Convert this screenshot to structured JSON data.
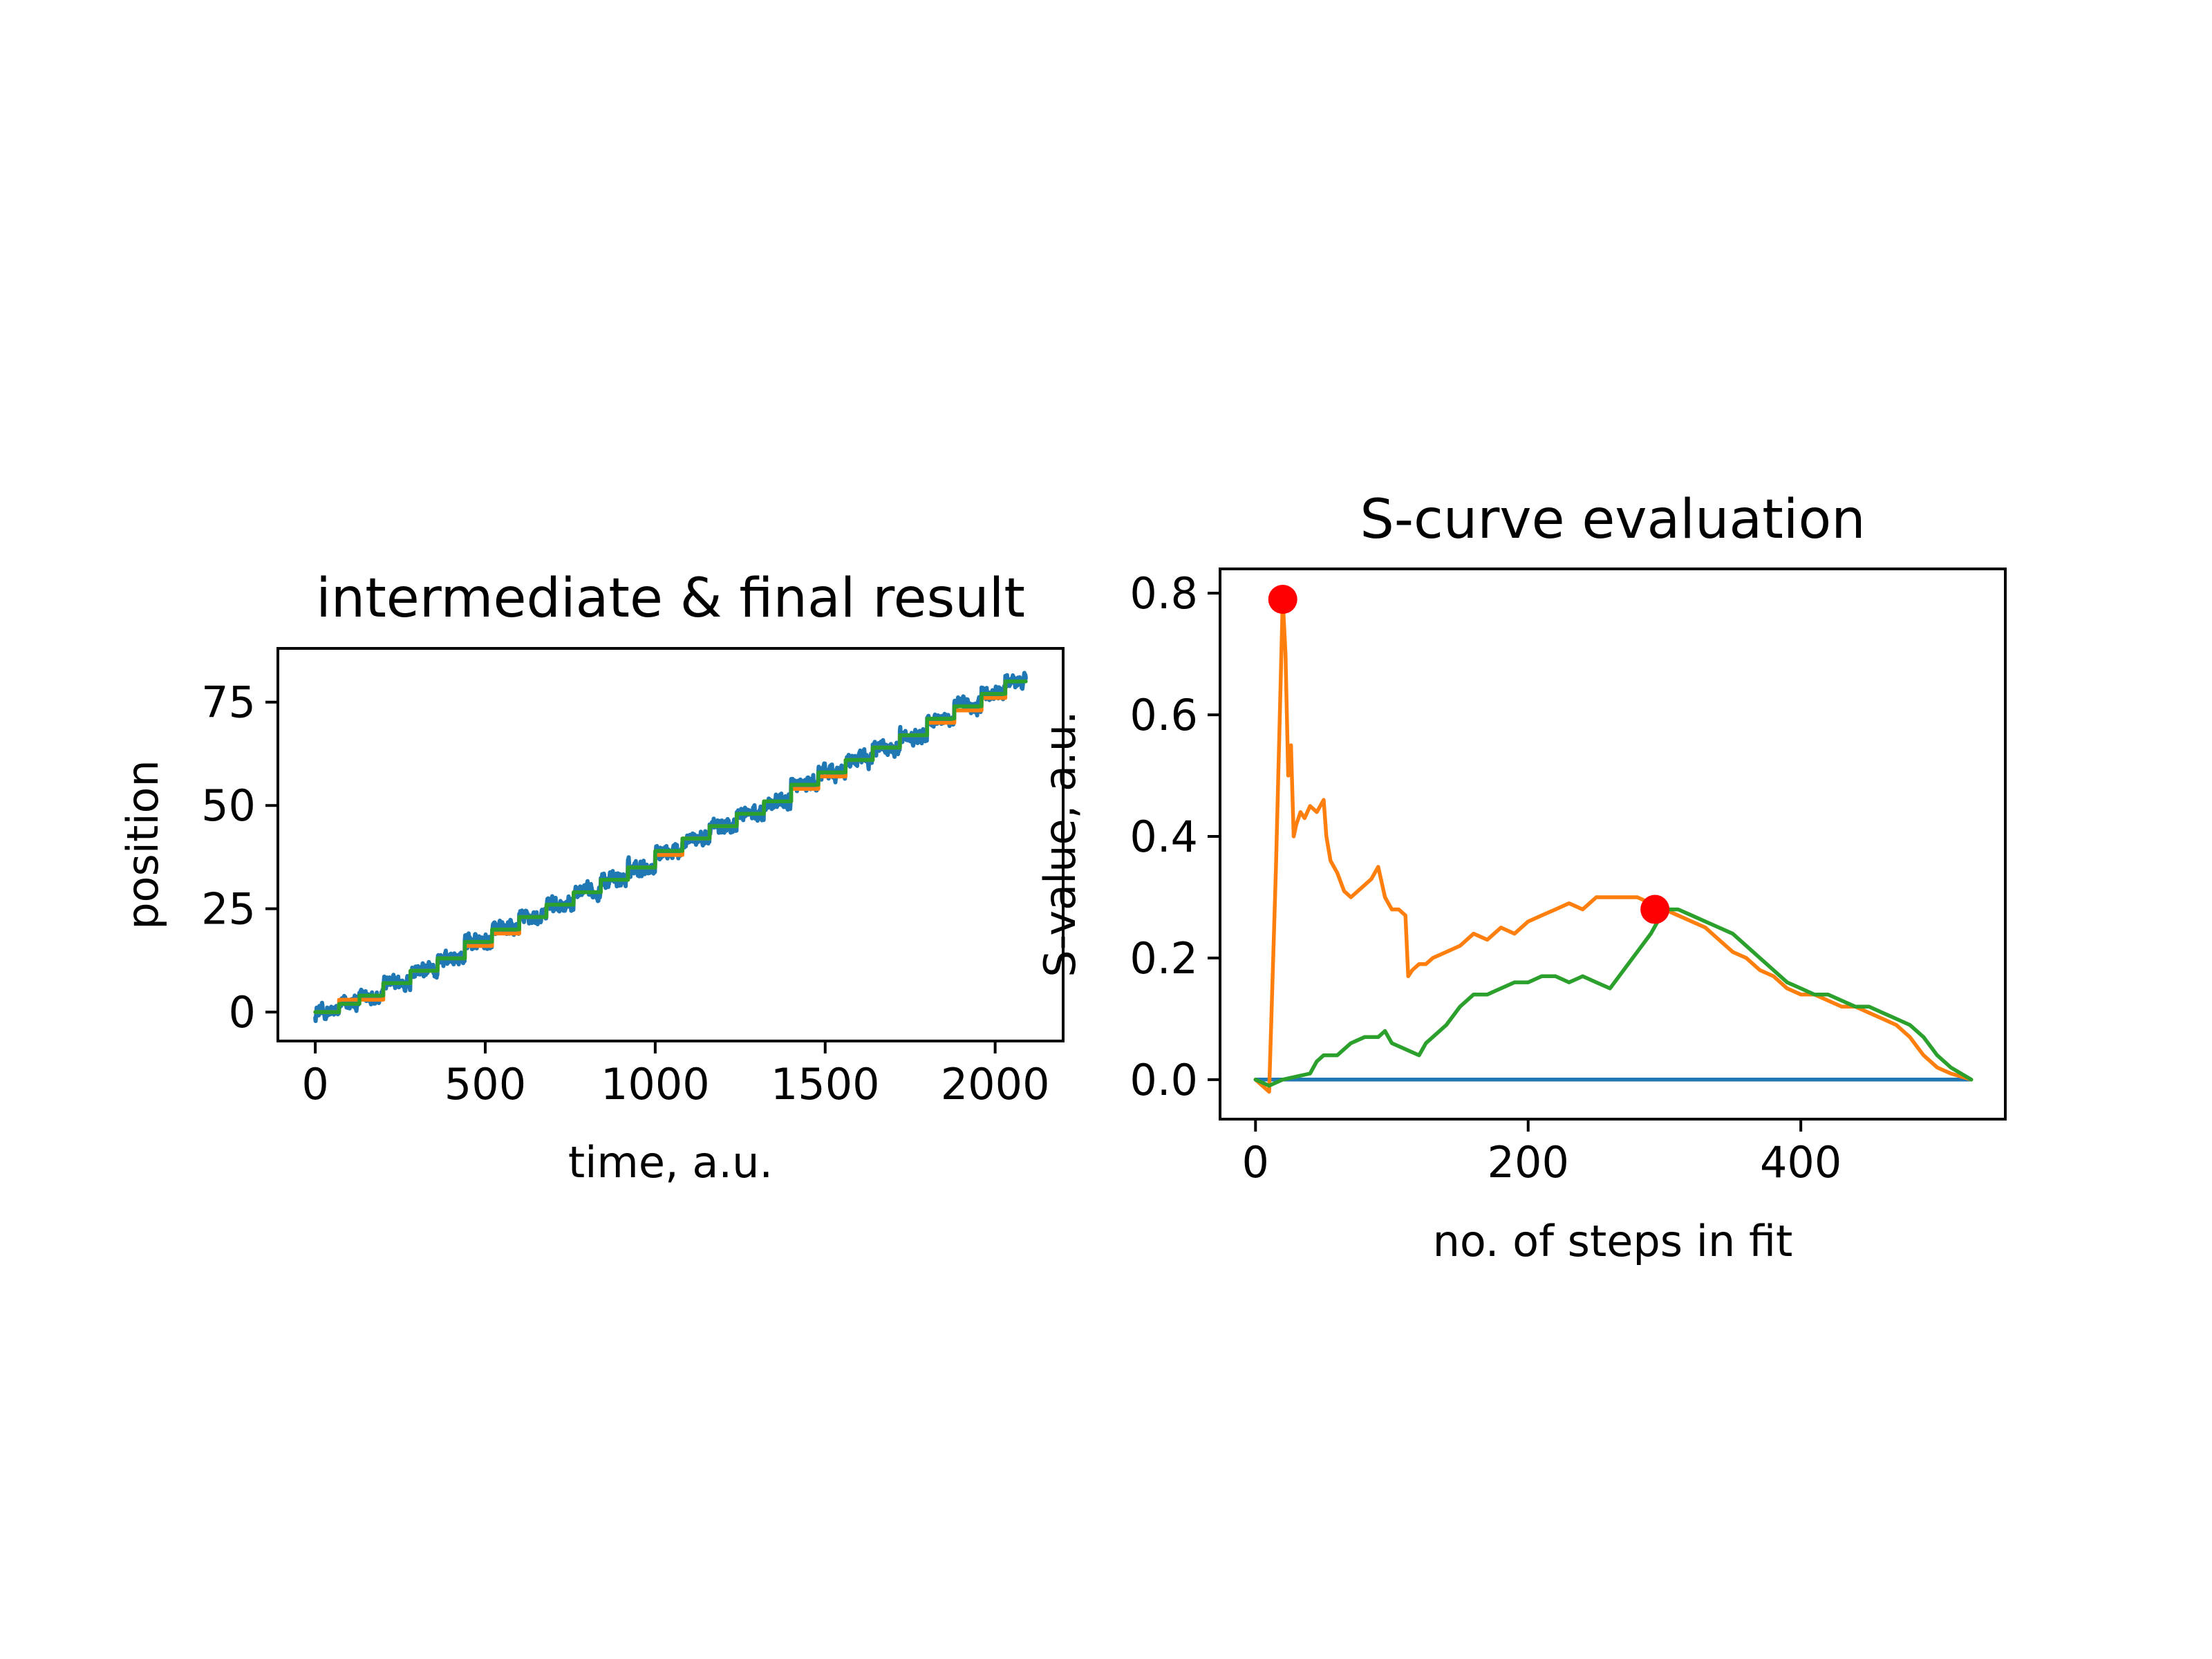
{
  "figure": {
    "background": "#ffffff"
  },
  "chart_data": [
    {
      "type": "line",
      "title": "intermediate & final result",
      "xlabel": "time, a.u.",
      "ylabel": "position",
      "xlim": [
        -110,
        2200
      ],
      "ylim": [
        -7,
        88
      ],
      "xticks": [
        0,
        500,
        1000,
        1500,
        2000
      ],
      "xtick_labels": [
        "0",
        "500",
        "1000",
        "1500",
        "2000"
      ],
      "yticks": [
        0,
        25,
        50,
        75
      ],
      "ytick_labels": [
        "0",
        "25",
        "50",
        "75"
      ],
      "grid": false,
      "legend": "none",
      "series": [
        {
          "color": "#1f77b4",
          "kind": "noisy staircase (raw position trace)",
          "x_start": 0,
          "x_end": 2090,
          "samples": 2090,
          "start_value": 0,
          "end_value": 80,
          "noise_amplitude": 1.8
        },
        {
          "color": "#ff7f0e",
          "kind": "staircase fit (intermediate)",
          "x": [
            0,
            70,
            70,
            200,
            200,
            280,
            280,
            360,
            360,
            440,
            440,
            520,
            520,
            600,
            600,
            680,
            680,
            760,
            760,
            840,
            840,
            920,
            920,
            1000,
            1000,
            1080,
            1080,
            1160,
            1160,
            1240,
            1240,
            1320,
            1320,
            1400,
            1400,
            1480,
            1480,
            1560,
            1560,
            1640,
            1640,
            1720,
            1720,
            1800,
            1800,
            1880,
            1880,
            1960,
            1960,
            2030,
            2030,
            2090
          ],
          "y": [
            0,
            0,
            3,
            3,
            7,
            7,
            10,
            10,
            13,
            13,
            16,
            16,
            19,
            19,
            23,
            23,
            26,
            26,
            29,
            29,
            32,
            32,
            35,
            35,
            38,
            38,
            42,
            42,
            45,
            45,
            48,
            48,
            51,
            51,
            54,
            54,
            57,
            57,
            61,
            61,
            64,
            64,
            67,
            67,
            70,
            70,
            73,
            73,
            76,
            76,
            80,
            80
          ]
        },
        {
          "color": "#2ca02c",
          "kind": "staircase fit (final)",
          "x": [
            0,
            70,
            70,
            130,
            130,
            200,
            200,
            280,
            280,
            360,
            360,
            440,
            440,
            520,
            520,
            600,
            600,
            680,
            680,
            760,
            760,
            840,
            840,
            920,
            920,
            1000,
            1000,
            1080,
            1080,
            1160,
            1160,
            1240,
            1240,
            1320,
            1320,
            1400,
            1400,
            1480,
            1480,
            1560,
            1560,
            1640,
            1640,
            1720,
            1720,
            1800,
            1800,
            1880,
            1880,
            1960,
            1960,
            2030,
            2030,
            2090
          ],
          "y": [
            0,
            0,
            2,
            2,
            4,
            4,
            7,
            7,
            10,
            10,
            13,
            13,
            17,
            17,
            20,
            20,
            23,
            23,
            26,
            26,
            29,
            29,
            32,
            32,
            35,
            35,
            39,
            39,
            42,
            42,
            45,
            45,
            48,
            48,
            51,
            51,
            55,
            55,
            58,
            58,
            61,
            61,
            64,
            64,
            67,
            67,
            71,
            71,
            74,
            74,
            77,
            77,
            80,
            80
          ]
        }
      ]
    },
    {
      "type": "line",
      "title": "S-curve evaluation",
      "xlabel": "no. of steps in fit",
      "ylabel": "S-value, a.u.",
      "xlim": [
        -26,
        550
      ],
      "ylim": [
        -0.065,
        0.84
      ],
      "xticks": [
        0,
        200,
        400
      ],
      "xtick_labels": [
        "0",
        "200",
        "400"
      ],
      "yticks": [
        0.0,
        0.2,
        0.4,
        0.6,
        0.8
      ],
      "ytick_labels": [
        "0.0",
        "0.2",
        "0.4",
        "0.6",
        "0.8"
      ],
      "grid": false,
      "legend": "none",
      "series": [
        {
          "color": "#1f77b4",
          "x": [
            0,
            525
          ],
          "y": [
            0,
            0
          ]
        },
        {
          "color": "#ff7f0e",
          "x": [
            0,
            5,
            10,
            15,
            20,
            22,
            24,
            26,
            28,
            30,
            33,
            36,
            40,
            45,
            50,
            52,
            55,
            60,
            65,
            70,
            75,
            80,
            85,
            90,
            95,
            100,
            105,
            110,
            112,
            115,
            120,
            125,
            130,
            140,
            150,
            160,
            170,
            180,
            190,
            200,
            210,
            220,
            230,
            240,
            250,
            260,
            270,
            280,
            290,
            300,
            310,
            320,
            330,
            340,
            350,
            360,
            370,
            380,
            390,
            400,
            410,
            420,
            430,
            440,
            450,
            460,
            470,
            480,
            490,
            500,
            510,
            525
          ],
          "y": [
            0,
            -0.01,
            -0.02,
            0.35,
            0.79,
            0.7,
            0.5,
            0.55,
            0.4,
            0.42,
            0.44,
            0.43,
            0.45,
            0.44,
            0.46,
            0.4,
            0.36,
            0.34,
            0.31,
            0.3,
            0.31,
            0.32,
            0.33,
            0.35,
            0.3,
            0.28,
            0.28,
            0.27,
            0.17,
            0.18,
            0.19,
            0.19,
            0.2,
            0.21,
            0.22,
            0.24,
            0.23,
            0.25,
            0.24,
            0.26,
            0.27,
            0.28,
            0.29,
            0.28,
            0.3,
            0.3,
            0.3,
            0.3,
            0.29,
            0.28,
            0.27,
            0.26,
            0.25,
            0.23,
            0.21,
            0.2,
            0.18,
            0.17,
            0.15,
            0.14,
            0.14,
            0.13,
            0.12,
            0.12,
            0.11,
            0.1,
            0.09,
            0.07,
            0.04,
            0.02,
            0.01,
            0
          ]
        },
        {
          "color": "#2ca02c",
          "x": [
            0,
            10,
            20,
            30,
            40,
            45,
            50,
            60,
            70,
            80,
            90,
            95,
            100,
            110,
            120,
            125,
            130,
            140,
            150,
            160,
            170,
            180,
            190,
            200,
            210,
            220,
            230,
            240,
            250,
            260,
            270,
            280,
            290,
            295,
            300,
            310,
            320,
            330,
            340,
            350,
            360,
            370,
            380,
            390,
            400,
            410,
            420,
            430,
            440,
            450,
            460,
            470,
            480,
            490,
            500,
            510,
            525
          ],
          "y": [
            0,
            -0.01,
            0,
            0.005,
            0.01,
            0.03,
            0.04,
            0.04,
            0.06,
            0.07,
            0.07,
            0.08,
            0.06,
            0.05,
            0.04,
            0.06,
            0.07,
            0.09,
            0.12,
            0.14,
            0.14,
            0.15,
            0.16,
            0.16,
            0.17,
            0.17,
            0.16,
            0.17,
            0.16,
            0.15,
            0.18,
            0.21,
            0.24,
            0.26,
            0.28,
            0.28,
            0.27,
            0.26,
            0.25,
            0.24,
            0.22,
            0.2,
            0.18,
            0.16,
            0.15,
            0.14,
            0.14,
            0.13,
            0.12,
            0.12,
            0.11,
            0.1,
            0.09,
            0.07,
            0.04,
            0.02,
            0
          ]
        }
      ],
      "markers": [
        {
          "color": "#ff0000",
          "x": 20,
          "y": 0.79
        },
        {
          "color": "#ff0000",
          "x": 293,
          "y": 0.28
        }
      ]
    }
  ]
}
